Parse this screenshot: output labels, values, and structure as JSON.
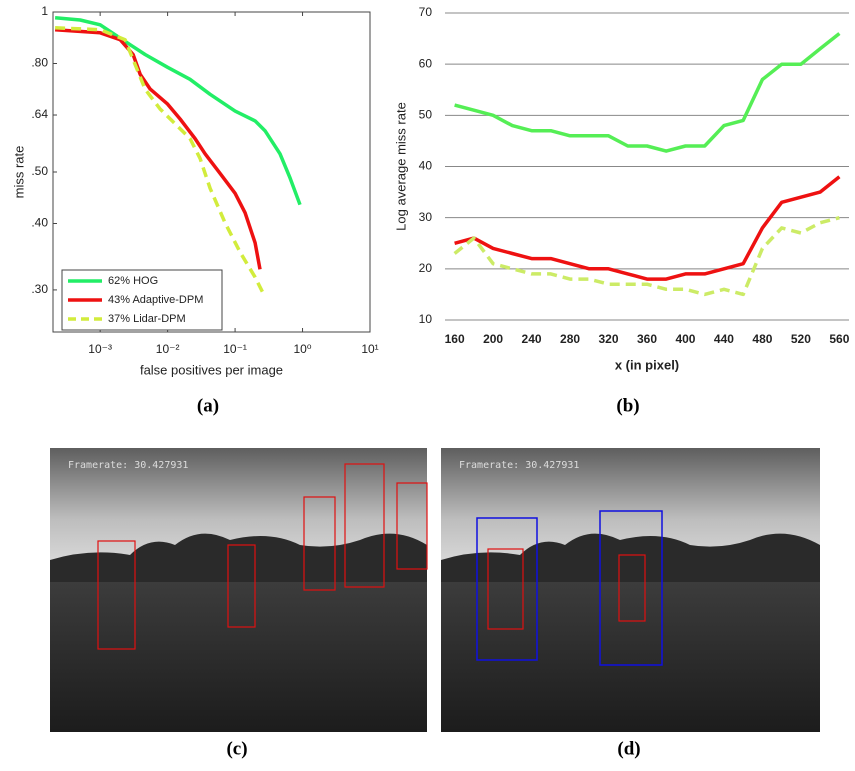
{
  "chart_data": [
    {
      "type": "line",
      "caption": "(a)",
      "xlabel": "false positives per image",
      "ylabel": "miss rate",
      "xscale": "log",
      "yscale": "log",
      "xlim": [
        0.0002,
        10
      ],
      "ylim": [
        0.25,
        1
      ],
      "grid": false,
      "legend": "lower left",
      "xticks": [
        {
          "value": 0.001,
          "label": "10⁻³"
        },
        {
          "value": 0.01,
          "label": "10⁻²"
        },
        {
          "value": 0.1,
          "label": "10⁻¹"
        },
        {
          "value": 1,
          "label": "10⁰"
        },
        {
          "value": 10,
          "label": "10¹"
        }
      ],
      "yticks": [
        {
          "value": 0.3,
          "label": ".30"
        },
        {
          "value": 0.4,
          "label": ".40"
        },
        {
          "value": 0.5,
          "label": ".50"
        },
        {
          "value": 0.64,
          "label": ".64"
        },
        {
          "value": 0.8,
          "label": ".80"
        },
        1
      ],
      "series": [
        {
          "name": "62% HOG",
          "color": "#22ee66",
          "linestyle": "solid",
          "x": [
            0.000215,
            0.000506,
            0.001,
            0.00167,
            0.00278,
            0.00464,
            0.01,
            0.0215,
            0.0427,
            0.1,
            0.198,
            0.278,
            0.464,
            0.653,
            0.918
          ],
          "values": [
            0.975,
            0.966,
            0.946,
            0.906,
            0.868,
            0.832,
            0.787,
            0.747,
            0.7,
            0.651,
            0.624,
            0.598,
            0.541,
            0.487,
            0.434
          ]
        },
        {
          "name": "43% Adaptive-DPM",
          "color": "#ee1111",
          "linestyle": "solid",
          "x": [
            0.000215,
            0.001,
            0.00198,
            0.00308,
            0.00392,
            0.00551,
            0.01,
            0.0153,
            0.0255,
            0.0359,
            0.06,
            0.1,
            0.141,
            0.198,
            0.234
          ],
          "values": [
            0.926,
            0.914,
            0.887,
            0.832,
            0.763,
            0.716,
            0.671,
            0.629,
            0.578,
            0.541,
            0.497,
            0.456,
            0.419,
            0.368,
            0.328
          ]
        },
        {
          "name": "37% Lidar-DPM",
          "color": "#d2ec3c",
          "linestyle": "dashed",
          "x": [
            0.000215,
            0.001,
            0.00234,
            0.00308,
            0.00464,
            0.00774,
            0.0129,
            0.0215,
            0.0303,
            0.0427,
            0.0711,
            0.119,
            0.198,
            0.278
          ],
          "values": [
            0.934,
            0.926,
            0.887,
            0.814,
            0.716,
            0.657,
            0.616,
            0.578,
            0.53,
            0.466,
            0.401,
            0.353,
            0.317,
            0.291
          ]
        }
      ]
    },
    {
      "type": "line",
      "caption": "(b)",
      "xlabel": "x (in pixel)",
      "ylabel": "Log average miss rate",
      "xscale": "linear",
      "yscale": "linear",
      "xlim": [
        150,
        570
      ],
      "ylim": [
        10,
        70
      ],
      "grid": true,
      "xticks": [
        160,
        200,
        240,
        280,
        320,
        360,
        400,
        440,
        480,
        520,
        560
      ],
      "yticks": [
        10,
        20,
        30,
        40,
        50,
        60,
        70
      ],
      "x": [
        160,
        180,
        200,
        220,
        240,
        260,
        280,
        300,
        320,
        340,
        360,
        380,
        400,
        420,
        440,
        460,
        480,
        500,
        520,
        540,
        560
      ],
      "series": [
        {
          "color": "#55ee55",
          "linestyle": "solid",
          "values": [
            52,
            51,
            50,
            48,
            47,
            47,
            46,
            46,
            46,
            44,
            44,
            43,
            44,
            44,
            48,
            49,
            57,
            60,
            60,
            63,
            66
          ]
        },
        {
          "color": "#ee1111",
          "linestyle": "solid",
          "values": [
            25,
            26,
            24,
            23,
            22,
            22,
            21,
            20,
            20,
            19,
            18,
            18,
            19,
            19,
            20,
            21,
            28,
            33,
            34,
            35,
            38
          ]
        },
        {
          "color": "#cceb66",
          "linestyle": "dashed",
          "values": [
            23,
            26,
            21,
            20,
            19,
            19,
            18,
            18,
            17,
            17,
            17,
            16,
            16,
            15,
            16,
            15,
            24,
            28,
            27,
            29,
            30
          ]
        }
      ]
    }
  ],
  "images": [
    {
      "caption": "(c)",
      "overlay_text": "Framerate: 30.427931"
    },
    {
      "caption": "(d)",
      "overlay_text": "Framerate: 30.427931"
    }
  ]
}
